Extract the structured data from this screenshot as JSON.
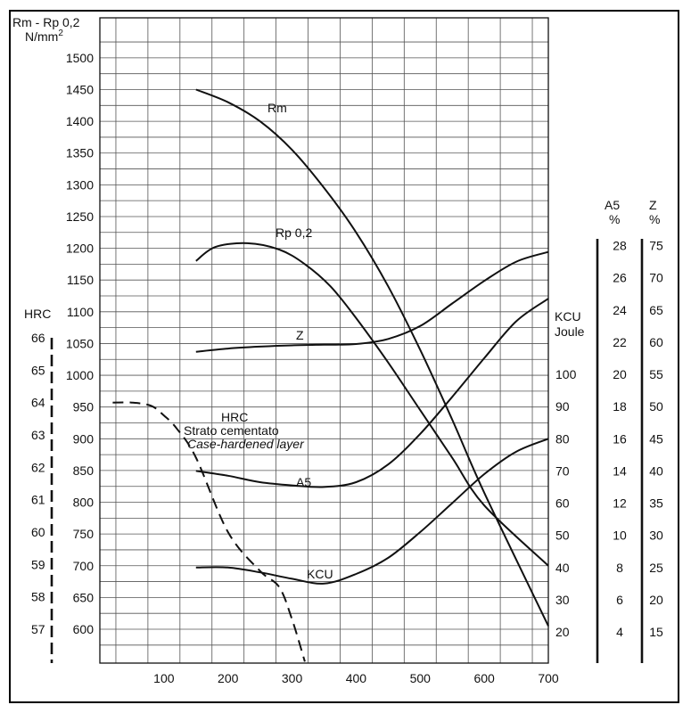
{
  "chart_data": {
    "type": "line",
    "x_ticks": [
      100,
      200,
      300,
      400,
      500,
      600,
      700
    ],
    "xlim": [
      0,
      700
    ],
    "grid": true,
    "axes": {
      "left": {
        "title_line1": "Rm - Rp 0,2",
        "title_line2": "N/mm",
        "title_sup": "2",
        "ylim": [
          550,
          1525
        ],
        "ticks": [
          600,
          650,
          700,
          750,
          800,
          850,
          900,
          950,
          1000,
          1050,
          1100,
          1150,
          1200,
          1250,
          1300,
          1350,
          1400,
          1450,
          1500
        ]
      },
      "hrc": {
        "title": "HRC",
        "ticks": [
          57,
          58,
          59,
          60,
          61,
          62,
          63,
          64,
          65,
          66
        ]
      },
      "kcu": {
        "title_line1": "KCU",
        "title_line2": "Joule",
        "ticks": [
          20,
          30,
          40,
          50,
          60,
          70,
          80,
          90,
          100
        ]
      },
      "a5": {
        "title_line1": "A5",
        "title_line2": "%",
        "ticks": [
          4,
          6,
          8,
          10,
          12,
          14,
          16,
          18,
          20,
          22,
          24,
          26,
          28
        ]
      },
      "z": {
        "title_line1": "Z",
        "title_line2": "%",
        "ticks": [
          15,
          20,
          25,
          30,
          35,
          40,
          45,
          50,
          55,
          60,
          65,
          70,
          75
        ]
      }
    },
    "series": [
      {
        "name": "Rm",
        "axis": "left",
        "x": [
          150,
          200,
          250,
          300,
          350,
          400,
          450,
          500,
          550,
          600,
          700
        ],
        "y": [
          1450,
          1430,
          1400,
          1355,
          1295,
          1225,
          1140,
          1040,
          930,
          815,
          605
        ]
      },
      {
        "name": "Rp 0,2",
        "axis": "left",
        "x": [
          150,
          180,
          230,
          280,
          320,
          360,
          400,
          450,
          500,
          550,
          600,
          700
        ],
        "y": [
          1180,
          1202,
          1208,
          1198,
          1175,
          1140,
          1090,
          1020,
          945,
          870,
          795,
          700
        ]
      },
      {
        "name": "Z",
        "axis": "z",
        "x": [
          150,
          200,
          250,
          300,
          350,
          400,
          450,
          500,
          550,
          600,
          650,
          700
        ],
        "y": [
          58.5,
          59,
          59.3,
          59.5,
          59.6,
          59.7,
          60.5,
          62.5,
          66,
          69.5,
          72.5,
          74
        ]
      },
      {
        "name": "A5",
        "axis": "a5",
        "x": [
          150,
          200,
          250,
          300,
          350,
          400,
          450,
          500,
          550,
          600,
          650,
          700
        ],
        "y": [
          14.0,
          13.7,
          13.3,
          13.1,
          13.0,
          13.3,
          14.4,
          16.3,
          18.6,
          21.0,
          23.3,
          24.7
        ]
      },
      {
        "name": "KCU",
        "axis": "kcu",
        "x": [
          150,
          200,
          250,
          300,
          350,
          400,
          450,
          500,
          550,
          600,
          650,
          700
        ],
        "y": [
          40,
          40,
          38.5,
          36.5,
          35,
          38,
          43,
          51,
          60,
          69,
          76,
          80
        ]
      },
      {
        "name": "HRC Strato cementato",
        "axis": "hrc",
        "dashed": true,
        "x": [
          20,
          50,
          80,
          100,
          120,
          150,
          200,
          250,
          280,
          300,
          320
        ],
        "y": [
          64,
          64,
          63.9,
          63.6,
          63.2,
          62.3,
          60,
          58.8,
          58.3,
          57.3,
          56
        ]
      }
    ],
    "annotations": {
      "rm": "Rm",
      "rp": "Rp 0,2",
      "z": "Z",
      "a5": "A5",
      "kcu": "KCU",
      "hrc_line1": "HRC",
      "hrc_line2": "Strato cementato",
      "hrc_line3": "Case-hardened layer"
    }
  }
}
